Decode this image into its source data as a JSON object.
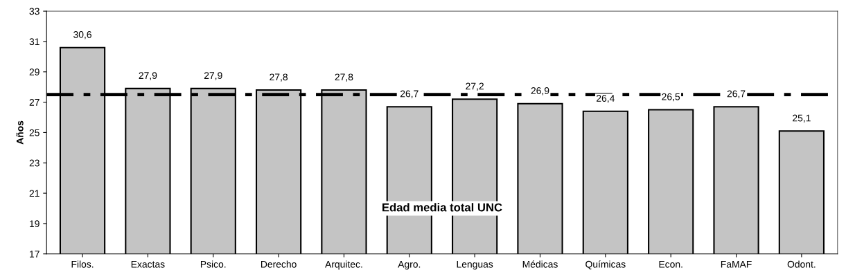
{
  "chart_data": {
    "type": "bar",
    "ylabel": "Años",
    "categories": [
      "Filos.",
      "Exactas",
      "Psico.",
      "Derecho",
      "Arquitec.",
      "Agro.",
      "Lenguas",
      "Médicas",
      "Químicas",
      "Econ.",
      "FaMAF",
      "Odont."
    ],
    "values": [
      30.6,
      27.9,
      27.9,
      27.8,
      27.8,
      26.7,
      27.2,
      26.9,
      26.4,
      26.5,
      26.7,
      25.1
    ],
    "value_labels": [
      "30,6",
      "27,9",
      "27,9",
      "27,8",
      "27,8",
      "26,7",
      "27,2",
      "26,9",
      "26,4",
      "26,5",
      "26,7",
      "25,1"
    ],
    "color": "#c4c4c4",
    "ylim": [
      17,
      33
    ],
    "yticks": [
      17,
      19,
      21,
      23,
      25,
      27,
      29,
      31,
      33
    ],
    "ref_lines": [
      {
        "axis": "y",
        "value": 27.5,
        "label": "Edad media total UNC",
        "color": "#000000",
        "line_style": "dashdot"
      }
    ]
  }
}
